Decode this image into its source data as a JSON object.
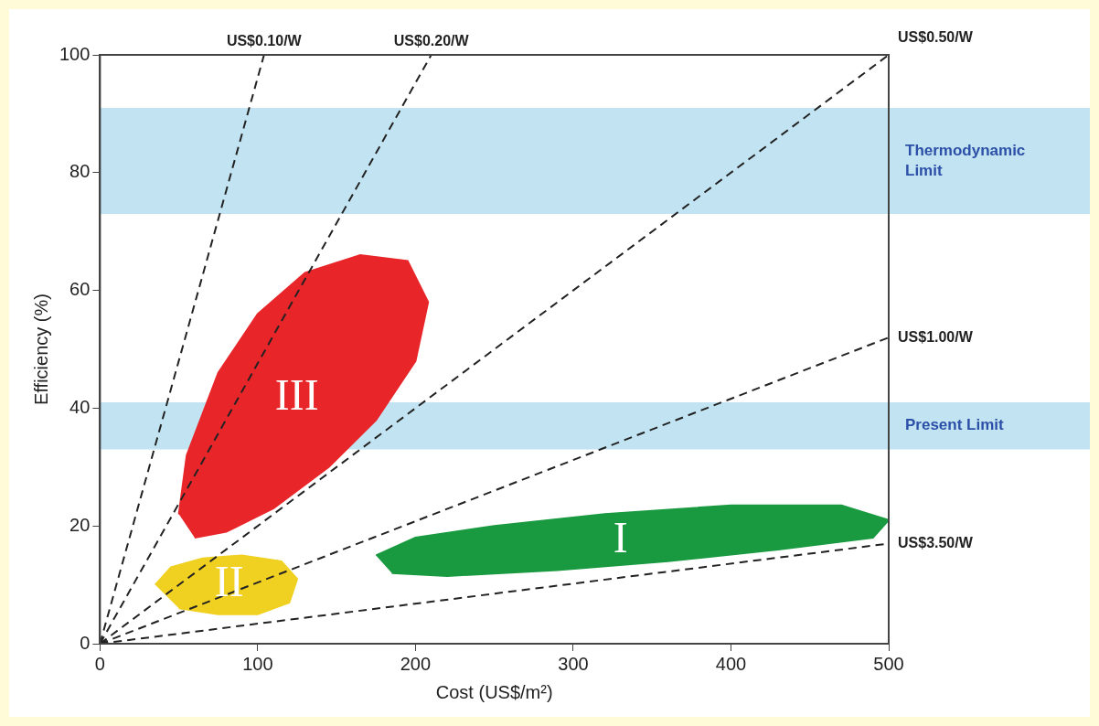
{
  "chart_data": {
    "type": "line",
    "xlabel": "Cost (US$/m²)",
    "ylabel": "Efficiency (%)",
    "xlim": [
      0,
      500
    ],
    "ylim": [
      0,
      100
    ],
    "xticks": [
      0,
      100,
      200,
      300,
      400,
      500
    ],
    "yticks": [
      0,
      20,
      40,
      60,
      80,
      100
    ],
    "grid": false,
    "legend": false,
    "line_style": "dashed",
    "marker": "none",
    "bands": [
      {
        "axis": "y",
        "from": 73,
        "to": 91,
        "label": "Thermodynamic Limit",
        "color": "#c2e4f2"
      },
      {
        "axis": "y",
        "from": 33,
        "to": 41,
        "label": "Present Limit",
        "color": "#c2e4f2"
      }
    ],
    "series": [
      {
        "name": "III",
        "type": "area",
        "color": "#e8262a",
        "x": [
          50,
          55,
          75,
          100,
          130,
          165,
          195,
          208,
          200,
          175,
          145,
          110,
          80,
          60
        ],
        "values": [
          22,
          32,
          46,
          56,
          63,
          66,
          65,
          58,
          48,
          38,
          30,
          23,
          19,
          18
        ]
      },
      {
        "name": "II",
        "type": "area",
        "color": "#f0d020",
        "x": [
          35,
          45,
          65,
          90,
          115,
          125,
          120,
          100,
          75,
          50
        ],
        "values": [
          10,
          13,
          14.5,
          15,
          14,
          11,
          7,
          5,
          5,
          6
        ]
      },
      {
        "name": "I",
        "type": "area",
        "color": "#1a9a40",
        "x": [
          175,
          200,
          250,
          320,
          400,
          470,
          500,
          490,
          430,
          360,
          290,
          220,
          185
        ],
        "values": [
          15,
          18,
          20,
          22,
          23.5,
          23.5,
          21,
          18,
          16,
          14,
          12.5,
          11.5,
          12
        ]
      },
      {
        "name": "US$0.10/W",
        "color": "#222222",
        "x": [
          0,
          104
        ],
        "values": [
          0,
          100
        ]
      },
      {
        "name": "US$0.20/W",
        "color": "#222222",
        "x": [
          0,
          210
        ],
        "values": [
          0,
          100
        ]
      },
      {
        "name": "US$0.50/W",
        "color": "#222222",
        "x": [
          0,
          500
        ],
        "values": [
          0,
          100
        ]
      },
      {
        "name": "US$1.00/W",
        "color": "#222222",
        "x": [
          0,
          500
        ],
        "values": [
          0,
          52
        ]
      },
      {
        "name": "US$3.50/W",
        "color": "#222222",
        "x": [
          0,
          500
        ],
        "values": [
          0,
          17
        ]
      }
    ]
  }
}
